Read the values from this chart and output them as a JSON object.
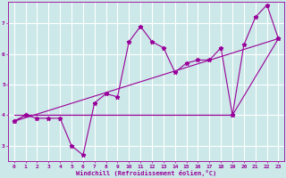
{
  "xlabel": "Windchill (Refroidissement éolien,°C)",
  "background_color": "#cce8e8",
  "line_color": "#990099",
  "grid_color": "#ffffff",
  "xlim": [
    -0.5,
    23.5
  ],
  "ylim": [
    2.5,
    7.7
  ],
  "yticks": [
    3,
    4,
    5,
    6,
    7
  ],
  "xticks": [
    0,
    1,
    2,
    3,
    4,
    5,
    6,
    7,
    8,
    9,
    10,
    11,
    12,
    13,
    14,
    15,
    16,
    17,
    18,
    19,
    20,
    21,
    22,
    23
  ],
  "series0_x": [
    0,
    1,
    2,
    3,
    4,
    5,
    6,
    7,
    8,
    9,
    10,
    11,
    12,
    13,
    14,
    15,
    16,
    17,
    18,
    19,
    20,
    21,
    22,
    23
  ],
  "series0_y": [
    3.8,
    4.0,
    3.9,
    3.9,
    3.9,
    3.0,
    2.7,
    4.4,
    4.7,
    4.6,
    6.4,
    6.9,
    6.4,
    6.2,
    5.4,
    5.7,
    5.8,
    5.8,
    6.2,
    4.0,
    6.3,
    7.2,
    7.6,
    6.5
  ],
  "series1_x": [
    0,
    23
  ],
  "series1_y": [
    3.8,
    6.5
  ],
  "series2_x": [
    0,
    1,
    19,
    23
  ],
  "series2_y": [
    3.8,
    4.0,
    4.0,
    6.5
  ],
  "series3_x": [
    0,
    19
  ],
  "series3_y": [
    4.0,
    4.0
  ]
}
